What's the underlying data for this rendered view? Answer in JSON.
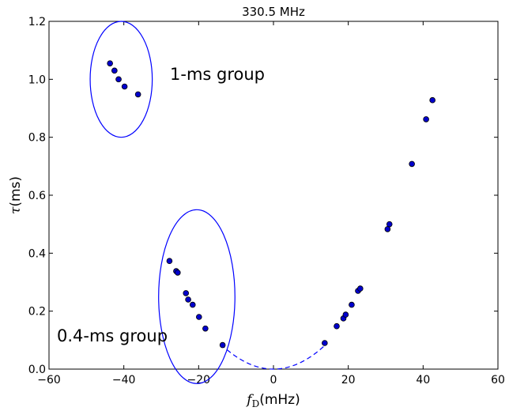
{
  "chart_data": {
    "type": "scatter",
    "title": "330.5 MHz",
    "xlabel": {
      "symbol": "f",
      "subscript": "D",
      "unit": "(mHz)"
    },
    "ylabel": {
      "symbol": "τ",
      "unit": "(ms)"
    },
    "xlim": [
      -60,
      60
    ],
    "ylim": [
      0.0,
      1.2
    ],
    "xticks": [
      -60,
      -40,
      -20,
      0,
      20,
      40,
      60
    ],
    "xtick_labels": [
      "−60",
      "−40",
      "−20",
      "0",
      "20",
      "40",
      "60"
    ],
    "yticks": [
      0.0,
      0.2,
      0.4,
      0.6,
      0.8,
      1.0,
      1.2
    ],
    "ytick_labels": [
      "0.0",
      "0.2",
      "0.4",
      "0.6",
      "0.8",
      "1.0",
      "1.2"
    ],
    "grid": false,
    "marker_color": "#0000cc",
    "line_color": "#0000ff",
    "points": [
      {
        "x": -43.7,
        "y": 1.055
      },
      {
        "x": -42.5,
        "y": 1.03
      },
      {
        "x": -41.4,
        "y": 1.0
      },
      {
        "x": -39.8,
        "y": 0.975
      },
      {
        "x": -36.2,
        "y": 0.948
      },
      {
        "x": -27.8,
        "y": 0.373
      },
      {
        "x": -26.0,
        "y": 0.338
      },
      {
        "x": -25.6,
        "y": 0.333
      },
      {
        "x": -23.4,
        "y": 0.262
      },
      {
        "x": -22.8,
        "y": 0.24
      },
      {
        "x": -21.6,
        "y": 0.222
      },
      {
        "x": -19.9,
        "y": 0.18
      },
      {
        "x": -18.2,
        "y": 0.14
      },
      {
        "x": -13.6,
        "y": 0.083
      },
      {
        "x": 13.7,
        "y": 0.09
      },
      {
        "x": 16.9,
        "y": 0.148
      },
      {
        "x": 18.7,
        "y": 0.175
      },
      {
        "x": 19.3,
        "y": 0.188
      },
      {
        "x": 20.9,
        "y": 0.222
      },
      {
        "x": 22.6,
        "y": 0.27
      },
      {
        "x": 23.2,
        "y": 0.278
      },
      {
        "x": 30.5,
        "y": 0.483
      },
      {
        "x": 31.0,
        "y": 0.5
      },
      {
        "x": 37.0,
        "y": 0.708
      },
      {
        "x": 40.8,
        "y": 0.862
      },
      {
        "x": 42.5,
        "y": 0.928
      }
    ],
    "fit_curve": {
      "style": "dashed",
      "x_range": [
        -14,
        14
      ],
      "y_at_x14": 0.085
    },
    "groups": [
      {
        "label": "1-ms group",
        "center": {
          "x": -40.7,
          "y": 1.0
        },
        "radius_x": 8.3,
        "radius_y": 0.2
      },
      {
        "label": "0.4-ms group",
        "center": {
          "x": -20.5,
          "y": 0.25
        },
        "radius_x": 10.2,
        "radius_y": 0.3
      }
    ]
  }
}
